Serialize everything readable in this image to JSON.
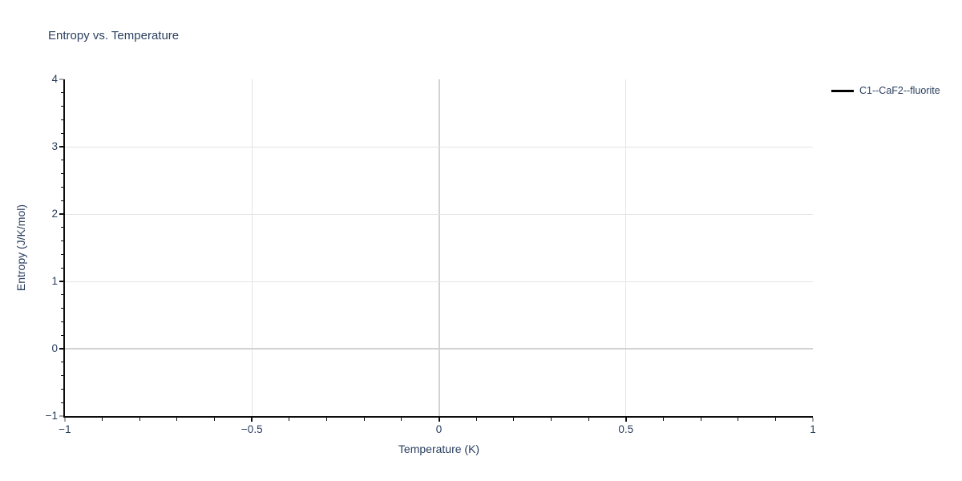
{
  "chart_data": {
    "type": "line",
    "title": "Entropy vs. Temperature",
    "xlabel": "Temperature (K)",
    "ylabel": "Entropy (J/K/mol)",
    "xlim": [
      -1,
      1
    ],
    "ylim": [
      -1,
      4
    ],
    "x_ticks": [
      -1,
      -0.5,
      0,
      0.5,
      1
    ],
    "x_tick_labels": [
      "−1",
      "−0.5",
      "0",
      "0.5",
      "1"
    ],
    "y_ticks": [
      4,
      3,
      2,
      1,
      0,
      -1
    ],
    "y_tick_labels": [
      "4",
      "3",
      "2",
      "1",
      "0",
      "−1"
    ],
    "x_minor_tick_step": 0.1,
    "y_minor_tick_step": 0.2,
    "grid": true,
    "zero_lines": true,
    "legend": {
      "position": "top-right",
      "entries": [
        {
          "label": "C1--CaF2--fluorite",
          "line_color": "#000000"
        }
      ]
    },
    "series": [
      {
        "name": "C1--CaF2--fluorite",
        "color": "#000000",
        "x": [],
        "y": []
      }
    ],
    "colors": {
      "text": "#2a3f5f",
      "axis": "#0d0d0d",
      "grid": "#e4e4e4",
      "zero_line": "#d2d2d2",
      "end_tick": "#a8a8a8",
      "background": "#ffffff"
    }
  }
}
